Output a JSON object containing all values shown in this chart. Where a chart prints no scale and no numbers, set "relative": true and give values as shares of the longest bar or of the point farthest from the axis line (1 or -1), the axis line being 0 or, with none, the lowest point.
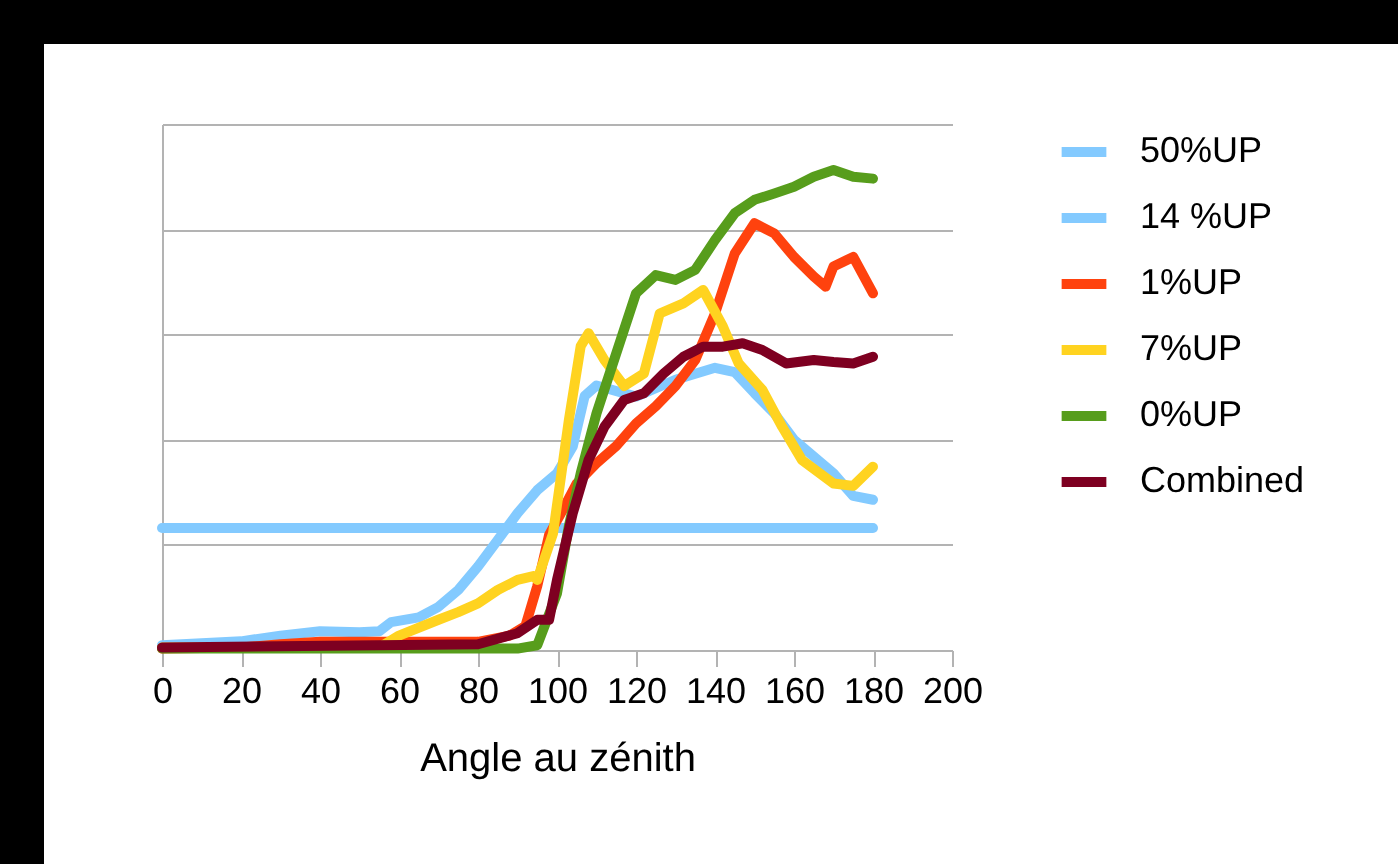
{
  "chart_data": {
    "type": "line",
    "xlabel": "Angle au zénith",
    "relative": true,
    "xlim": [
      0,
      200
    ],
    "xticks": [
      0,
      20,
      40,
      60,
      80,
      100,
      120,
      140,
      160,
      180,
      200
    ],
    "grid": "y",
    "legend": "right",
    "line_style": "solid",
    "marker": "none",
    "series": [
      {
        "name": "50%UP",
        "color": "#83caff",
        "x": [
          0,
          180
        ],
        "values": [
          0.254,
          0.254
        ]
      },
      {
        "name": "14 %UP",
        "color": "#83caff",
        "x": [
          0,
          20,
          30,
          40,
          50,
          55,
          58,
          65,
          70,
          75,
          80,
          85,
          90,
          95,
          100,
          104,
          107,
          110,
          120,
          130,
          140,
          145,
          150,
          155,
          160,
          170,
          175,
          180
        ],
        "values": [
          0.01,
          0.018,
          0.03,
          0.039,
          0.037,
          0.039,
          0.058,
          0.068,
          0.09,
          0.125,
          0.174,
          0.229,
          0.285,
          0.333,
          0.368,
          0.424,
          0.529,
          0.551,
          0.528,
          0.563,
          0.588,
          0.579,
          0.535,
          0.493,
          0.438,
          0.368,
          0.321,
          0.313
        ]
      },
      {
        "name": "1%UP",
        "color": "#ff420e",
        "x": [
          0,
          20,
          30,
          40,
          60,
          80,
          88,
          92,
          95,
          98,
          102,
          105,
          110,
          115,
          120,
          125,
          130,
          135,
          140,
          145,
          150,
          155,
          160,
          165,
          168,
          170,
          175,
          180
        ],
        "values": [
          0.003,
          0.005,
          0.012,
          0.017,
          0.017,
          0.017,
          0.03,
          0.05,
          0.133,
          0.24,
          0.3,
          0.347,
          0.389,
          0.425,
          0.472,
          0.508,
          0.55,
          0.604,
          0.701,
          0.826,
          0.889,
          0.868,
          0.819,
          0.778,
          0.757,
          0.799,
          0.819,
          0.743
        ]
      },
      {
        "name": "7%UP",
        "color": "#ffd320",
        "x": [
          0,
          55,
          60,
          70,
          75,
          80,
          85,
          90,
          94,
          95,
          99,
          103,
          106,
          108,
          112,
          117,
          122,
          126,
          132,
          137,
          142,
          146,
          152,
          157,
          162,
          170,
          175,
          180
        ],
        "values": [
          0.005,
          0.005,
          0.03,
          0.063,
          0.079,
          0.097,
          0.125,
          0.146,
          0.154,
          0.146,
          0.243,
          0.479,
          0.633,
          0.66,
          0.604,
          0.55,
          0.576,
          0.701,
          0.722,
          0.75,
          0.674,
          0.597,
          0.542,
          0.465,
          0.396,
          0.347,
          0.342,
          0.382
        ]
      },
      {
        "name": "0%UP",
        "color": "#579d1c",
        "x": [
          0,
          90,
          95,
          100,
          103,
          106,
          110,
          115,
          120,
          125,
          130,
          135,
          140,
          145,
          150,
          155,
          160,
          165,
          170,
          175,
          180
        ],
        "values": [
          0.003,
          0.003,
          0.01,
          0.118,
          0.258,
          0.368,
          0.493,
          0.618,
          0.743,
          0.781,
          0.771,
          0.792,
          0.854,
          0.91,
          0.938,
          0.951,
          0.965,
          0.986,
          1.0,
          0.986,
          0.982
        ]
      },
      {
        "name": "Combined",
        "color": "#7e0021",
        "x": [
          0,
          80,
          90,
          95,
          98,
          100,
          104,
          108,
          112,
          117,
          122,
          127,
          132,
          137,
          142,
          147,
          152,
          158,
          165,
          170,
          175,
          180
        ],
        "values": [
          0.005,
          0.012,
          0.035,
          0.063,
          0.063,
          0.146,
          0.285,
          0.396,
          0.465,
          0.521,
          0.535,
          0.576,
          0.611,
          0.632,
          0.632,
          0.639,
          0.625,
          0.597,
          0.604,
          0.6,
          0.597,
          0.611
        ]
      }
    ]
  }
}
